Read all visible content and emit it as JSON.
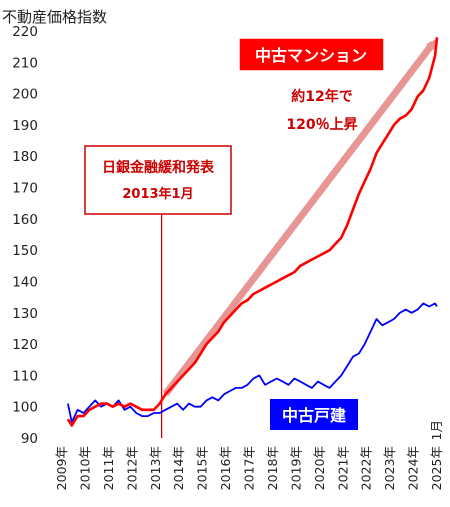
{
  "chart_data": {
    "type": "line",
    "ylabel": "不動産価格指数",
    "ylim": [
      90,
      220
    ],
    "yticks": [
      90,
      100,
      110,
      120,
      130,
      140,
      150,
      160,
      170,
      180,
      190,
      200,
      210,
      220
    ],
    "xticks": [
      "2009年",
      "2010年",
      "2011年",
      "2012年",
      "2013年",
      "2014年",
      "2015年",
      "2016年",
      "2017年",
      "2018年",
      "2019年",
      "2020年",
      "2021年",
      "2022年",
      "2023年",
      "2024年",
      "2025年"
    ],
    "x_end_label": "1月",
    "grid": false,
    "series": [
      {
        "name": "中古マンション",
        "color": "#ff0000",
        "points": [
          [
            "2009-04",
            96
          ],
          [
            "2009-06",
            94
          ],
          [
            "2009-09",
            97
          ],
          [
            "2009-12",
            97
          ],
          [
            "2010-03",
            99
          ],
          [
            "2010-06",
            100
          ],
          [
            "2010-09",
            101
          ],
          [
            "2010-12",
            101
          ],
          [
            "2011-03",
            100
          ],
          [
            "2011-06",
            101
          ],
          [
            "2011-09",
            100
          ],
          [
            "2011-12",
            101
          ],
          [
            "2012-03",
            100
          ],
          [
            "2012-06",
            99
          ],
          [
            "2012-09",
            99
          ],
          [
            "2012-12",
            99
          ],
          [
            "2013-03",
            101
          ],
          [
            "2013-06",
            104
          ],
          [
            "2013-09",
            106
          ],
          [
            "2013-12",
            108
          ],
          [
            "2014-03",
            110
          ],
          [
            "2014-06",
            112
          ],
          [
            "2014-09",
            114
          ],
          [
            "2014-12",
            117
          ],
          [
            "2015-03",
            120
          ],
          [
            "2015-06",
            122
          ],
          [
            "2015-09",
            124
          ],
          [
            "2015-12",
            127
          ],
          [
            "2016-03",
            129
          ],
          [
            "2016-06",
            131
          ],
          [
            "2016-09",
            133
          ],
          [
            "2016-12",
            134
          ],
          [
            "2017-03",
            136
          ],
          [
            "2017-06",
            137
          ],
          [
            "2017-09",
            138
          ],
          [
            "2017-12",
            139
          ],
          [
            "2018-03",
            140
          ],
          [
            "2018-06",
            141
          ],
          [
            "2018-09",
            142
          ],
          [
            "2018-12",
            143
          ],
          [
            "2019-03",
            145
          ],
          [
            "2019-06",
            146
          ],
          [
            "2019-09",
            147
          ],
          [
            "2019-12",
            148
          ],
          [
            "2020-03",
            149
          ],
          [
            "2020-06",
            150
          ],
          [
            "2020-09",
            152
          ],
          [
            "2020-12",
            154
          ],
          [
            "2021-03",
            158
          ],
          [
            "2021-06",
            163
          ],
          [
            "2021-09",
            168
          ],
          [
            "2021-12",
            172
          ],
          [
            "2022-03",
            176
          ],
          [
            "2022-06",
            181
          ],
          [
            "2022-09",
            184
          ],
          [
            "2022-12",
            187
          ],
          [
            "2023-03",
            190
          ],
          [
            "2023-06",
            192
          ],
          [
            "2023-09",
            193
          ],
          [
            "2023-12",
            195
          ],
          [
            "2024-03",
            199
          ],
          [
            "2024-06",
            201
          ],
          [
            "2024-09",
            205
          ],
          [
            "2024-12",
            212
          ],
          [
            "2025-01",
            218
          ]
        ]
      },
      {
        "name": "中古戸建",
        "color": "#0000ff",
        "points": [
          [
            "2009-04",
            101
          ],
          [
            "2009-06",
            95
          ],
          [
            "2009-09",
            99
          ],
          [
            "2009-12",
            98
          ],
          [
            "2010-03",
            100
          ],
          [
            "2010-06",
            102
          ],
          [
            "2010-09",
            100
          ],
          [
            "2010-12",
            101
          ],
          [
            "2011-03",
            100
          ],
          [
            "2011-06",
            102
          ],
          [
            "2011-09",
            99
          ],
          [
            "2011-12",
            100
          ],
          [
            "2012-03",
            98
          ],
          [
            "2012-06",
            97
          ],
          [
            "2012-09",
            97
          ],
          [
            "2012-12",
            98
          ],
          [
            "2013-03",
            98
          ],
          [
            "2013-06",
            99
          ],
          [
            "2013-09",
            100
          ],
          [
            "2013-12",
            101
          ],
          [
            "2014-03",
            99
          ],
          [
            "2014-06",
            101
          ],
          [
            "2014-09",
            100
          ],
          [
            "2014-12",
            100
          ],
          [
            "2015-03",
            102
          ],
          [
            "2015-06",
            103
          ],
          [
            "2015-09",
            102
          ],
          [
            "2015-12",
            104
          ],
          [
            "2016-03",
            105
          ],
          [
            "2016-06",
            106
          ],
          [
            "2016-09",
            106
          ],
          [
            "2016-12",
            107
          ],
          [
            "2017-03",
            109
          ],
          [
            "2017-06",
            110
          ],
          [
            "2017-09",
            107
          ],
          [
            "2017-12",
            108
          ],
          [
            "2018-03",
            109
          ],
          [
            "2018-06",
            108
          ],
          [
            "2018-09",
            107
          ],
          [
            "2018-12",
            109
          ],
          [
            "2019-03",
            108
          ],
          [
            "2019-06",
            107
          ],
          [
            "2019-09",
            106
          ],
          [
            "2019-12",
            108
          ],
          [
            "2020-03",
            107
          ],
          [
            "2020-06",
            106
          ],
          [
            "2020-09",
            108
          ],
          [
            "2020-12",
            110
          ],
          [
            "2021-03",
            113
          ],
          [
            "2021-06",
            116
          ],
          [
            "2021-09",
            117
          ],
          [
            "2021-12",
            120
          ],
          [
            "2022-03",
            124
          ],
          [
            "2022-06",
            128
          ],
          [
            "2022-09",
            126
          ],
          [
            "2022-12",
            127
          ],
          [
            "2023-03",
            128
          ],
          [
            "2023-06",
            130
          ],
          [
            "2023-09",
            131
          ],
          [
            "2023-12",
            130
          ],
          [
            "2024-03",
            131
          ],
          [
            "2024-06",
            133
          ],
          [
            "2024-09",
            132
          ],
          [
            "2024-12",
            133
          ],
          [
            "2025-01",
            132
          ]
        ]
      }
    ],
    "event": {
      "date": "2013-04",
      "line1": "日銀金融緩和発表",
      "line2": "2013年1月",
      "color": "#cc0000"
    },
    "annotations": {
      "mansion_label": "中古マンション",
      "mansion_label_bg": "#ff0000",
      "growth_line1": "約12年で",
      "growth_line2": "120％上昇",
      "house_label": "中古戸建",
      "house_label_bg": "#0000ff",
      "arrow_color": "#e58a8a"
    }
  }
}
